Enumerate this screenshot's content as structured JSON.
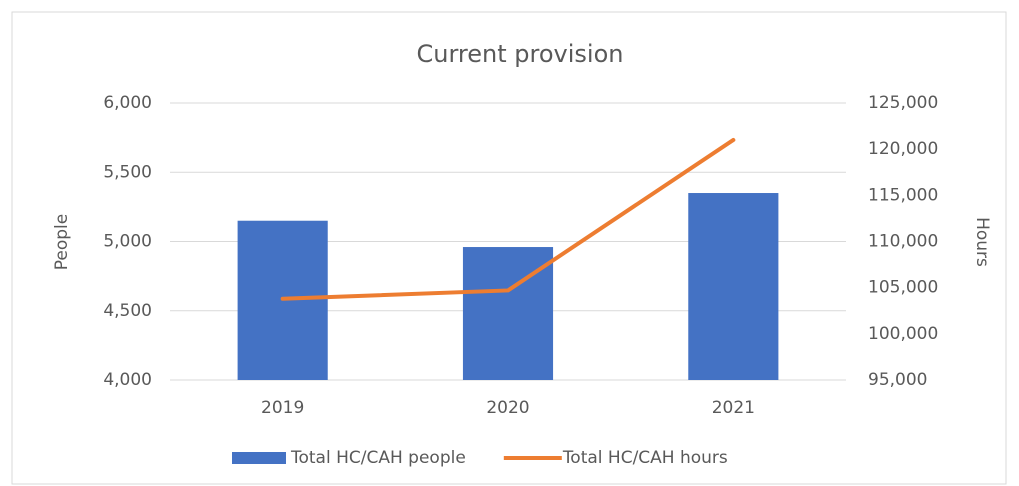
{
  "chart_data": {
    "type": "bar",
    "title": "Current provision",
    "categories": [
      "2019",
      "2020",
      "2021"
    ],
    "series": [
      {
        "name": "Total HC/CAH people",
        "color": "#4472c4",
        "values": [
          5150,
          4960,
          5350
        ],
        "axis": "y"
      },
      {
        "name": "Total HC/CAH hours",
        "color": "#ed7d31",
        "type": "line",
        "values": [
          103800,
          104700,
          121000
        ],
        "axis": "y2"
      }
    ],
    "ylabel": "People",
    "y2label": "Hours",
    "ylim": [
      4000,
      6000
    ],
    "yticks": [
      {
        "value": 4000,
        "label": "4,000"
      },
      {
        "value": 4500,
        "label": "4,500"
      },
      {
        "value": 5000,
        "label": "5,000"
      },
      {
        "value": 5500,
        "label": "5,500"
      },
      {
        "value": 6000,
        "label": "6,000"
      }
    ],
    "y2lim": [
      95000,
      125000
    ],
    "y2ticks": [
      {
        "value": 95000,
        "label": "95,000"
      },
      {
        "value": 100000,
        "label": "100,000"
      },
      {
        "value": 105000,
        "label": "105,000"
      },
      {
        "value": 110000,
        "label": "110,000"
      },
      {
        "value": 115000,
        "label": "115,000"
      },
      {
        "value": 120000,
        "label": "120,000"
      },
      {
        "value": 125000,
        "label": "125,000"
      }
    ],
    "grid": true,
    "legend": "bottom"
  }
}
